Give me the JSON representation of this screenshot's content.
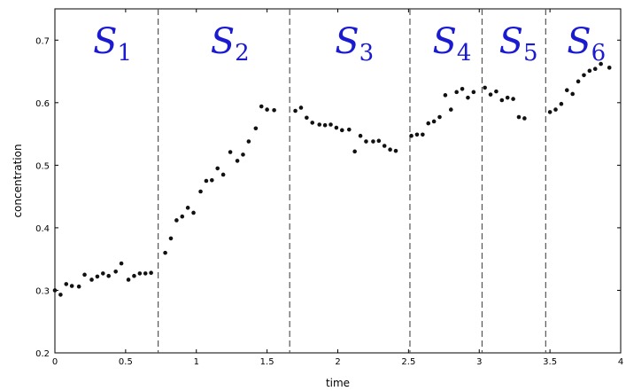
{
  "chart_data": {
    "type": "scatter",
    "xlabel": "time",
    "ylabel": "concentration",
    "xlim": [
      0,
      4
    ],
    "ylim": [
      0.2,
      0.75
    ],
    "x_ticks": [
      0,
      0.5,
      1,
      1.5,
      2,
      2.5,
      3,
      3.5,
      4
    ],
    "x_tick_labels": [
      "0",
      "0.5",
      "1",
      "1.5",
      "2",
      "2.5",
      "3",
      "3.5",
      "4"
    ],
    "y_ticks": [
      0.2,
      0.3,
      0.4,
      0.5,
      0.6,
      0.7
    ],
    "y_tick_labels": [
      "0.2",
      "0.3",
      "0.4",
      "0.5",
      "0.6",
      "0.7"
    ],
    "grid": false,
    "segment_boundaries": [
      0.73,
      1.66,
      2.51,
      3.02,
      3.47
    ],
    "segments": [
      {
        "label": "S",
        "sub": "1",
        "x_center": 0.37
      },
      {
        "label": "S",
        "sub": "2",
        "x_center": 1.2
      },
      {
        "label": "S",
        "sub": "3",
        "x_center": 2.08
      },
      {
        "label": "S",
        "sub": "4",
        "x_center": 2.77
      },
      {
        "label": "S",
        "sub": "5",
        "x_center": 3.24
      },
      {
        "label": "S",
        "sub": "6",
        "x_center": 3.72
      }
    ],
    "points": [
      [
        0.0,
        0.3
      ],
      [
        0.04,
        0.293
      ],
      [
        0.08,
        0.31
      ],
      [
        0.12,
        0.307
      ],
      [
        0.17,
        0.306
      ],
      [
        0.21,
        0.325
      ],
      [
        0.26,
        0.317
      ],
      [
        0.3,
        0.322
      ],
      [
        0.34,
        0.327
      ],
      [
        0.38,
        0.323
      ],
      [
        0.43,
        0.33
      ],
      [
        0.47,
        0.343
      ],
      [
        0.52,
        0.317
      ],
      [
        0.56,
        0.323
      ],
      [
        0.6,
        0.327
      ],
      [
        0.64,
        0.327
      ],
      [
        0.68,
        0.328
      ],
      [
        0.78,
        0.36
      ],
      [
        0.82,
        0.383
      ],
      [
        0.86,
        0.412
      ],
      [
        0.9,
        0.418
      ],
      [
        0.94,
        0.432
      ],
      [
        0.98,
        0.424
      ],
      [
        1.03,
        0.458
      ],
      [
        1.07,
        0.475
      ],
      [
        1.11,
        0.476
      ],
      [
        1.15,
        0.495
      ],
      [
        1.19,
        0.485
      ],
      [
        1.24,
        0.521
      ],
      [
        1.29,
        0.507
      ],
      [
        1.33,
        0.517
      ],
      [
        1.37,
        0.538
      ],
      [
        1.42,
        0.559
      ],
      [
        1.46,
        0.594
      ],
      [
        1.5,
        0.589
      ],
      [
        1.55,
        0.588
      ],
      [
        1.7,
        0.587
      ],
      [
        1.74,
        0.592
      ],
      [
        1.78,
        0.576
      ],
      [
        1.82,
        0.568
      ],
      [
        1.87,
        0.565
      ],
      [
        1.91,
        0.564
      ],
      [
        1.95,
        0.565
      ],
      [
        1.99,
        0.56
      ],
      [
        2.03,
        0.556
      ],
      [
        2.08,
        0.557
      ],
      [
        2.12,
        0.522
      ],
      [
        2.16,
        0.547
      ],
      [
        2.2,
        0.538
      ],
      [
        2.25,
        0.538
      ],
      [
        2.29,
        0.539
      ],
      [
        2.33,
        0.531
      ],
      [
        2.37,
        0.525
      ],
      [
        2.41,
        0.523
      ],
      [
        2.52,
        0.547
      ],
      [
        2.56,
        0.549
      ],
      [
        2.6,
        0.549
      ],
      [
        2.64,
        0.567
      ],
      [
        2.68,
        0.57
      ],
      [
        2.72,
        0.577
      ],
      [
        2.76,
        0.612
      ],
      [
        2.8,
        0.589
      ],
      [
        2.84,
        0.617
      ],
      [
        2.88,
        0.622
      ],
      [
        2.92,
        0.608
      ],
      [
        2.96,
        0.617
      ],
      [
        3.04,
        0.624
      ],
      [
        3.08,
        0.613
      ],
      [
        3.12,
        0.618
      ],
      [
        3.16,
        0.604
      ],
      [
        3.2,
        0.608
      ],
      [
        3.24,
        0.606
      ],
      [
        3.28,
        0.577
      ],
      [
        3.32,
        0.575
      ],
      [
        3.5,
        0.585
      ],
      [
        3.54,
        0.589
      ],
      [
        3.58,
        0.598
      ],
      [
        3.62,
        0.62
      ],
      [
        3.66,
        0.614
      ],
      [
        3.7,
        0.634
      ],
      [
        3.74,
        0.644
      ],
      [
        3.78,
        0.651
      ],
      [
        3.82,
        0.654
      ],
      [
        3.86,
        0.662
      ],
      [
        3.92,
        0.656
      ]
    ]
  }
}
